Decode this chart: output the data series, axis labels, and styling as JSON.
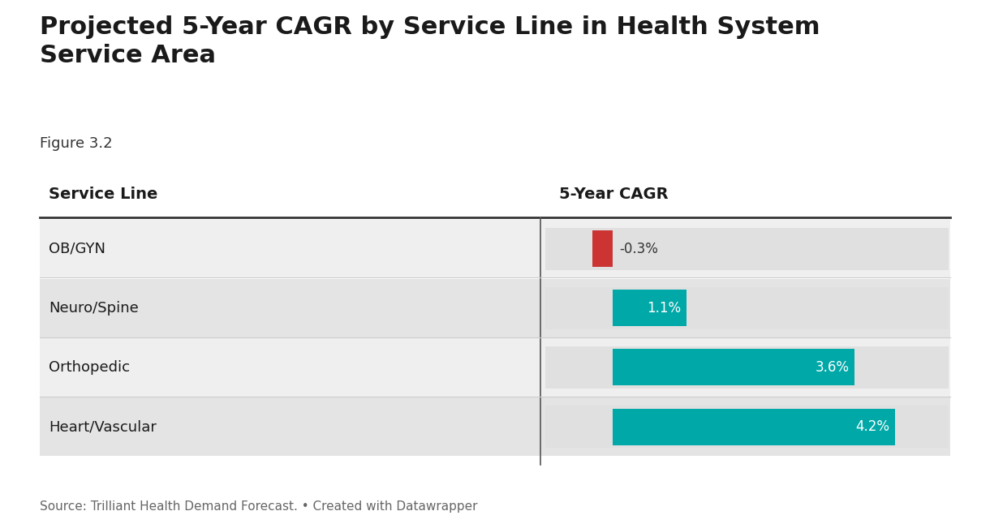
{
  "title": "Projected 5-Year CAGR by Service Line in Health System\nService Area",
  "subtitle": "Figure 3.2",
  "source": "Source: Trilliant Health Demand Forecast. • Created with Datawrapper",
  "col_header_left": "Service Line",
  "col_header_right": "5-Year CAGR",
  "categories": [
    "OB/GYN",
    "Neuro/Spine",
    "Orthopedic",
    "Heart/Vascular"
  ],
  "values": [
    -0.3,
    1.1,
    3.6,
    4.2
  ],
  "labels": [
    "-0.3%",
    "1.1%",
    "3.6%",
    "4.2%"
  ],
  "bar_colors": [
    "#cc3333",
    "#00a8a8",
    "#00a8a8",
    "#00a8a8"
  ],
  "bg_color": "#ffffff",
  "row_bg_colors": [
    "#efefef",
    "#e4e4e4",
    "#efefef",
    "#e4e4e4"
  ],
  "bar_bg_color": "#e0e0e0",
  "label_color_positive": "#ffffff",
  "label_color_negative": "#333333",
  "axis_split": 0.55,
  "x_min": -1.0,
  "x_max": 5.0,
  "title_fontsize": 22,
  "subtitle_fontsize": 13,
  "label_fontsize": 12,
  "header_fontsize": 14,
  "source_fontsize": 11
}
